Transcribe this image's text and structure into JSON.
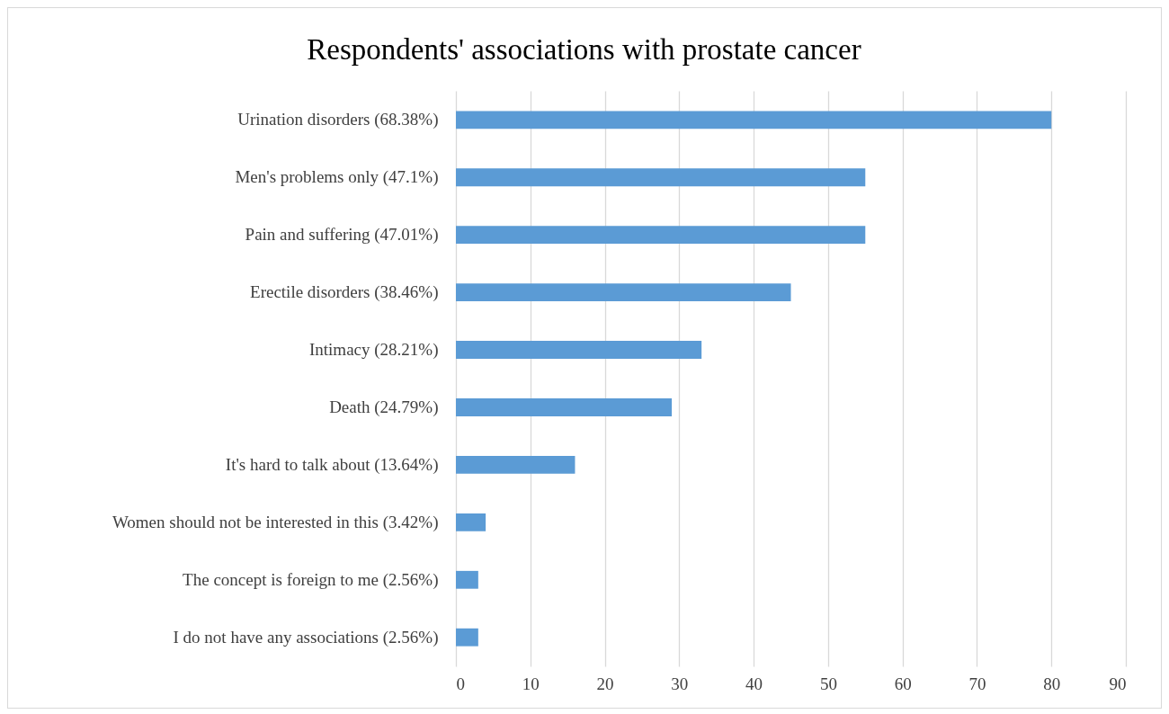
{
  "chart_data": {
    "type": "bar",
    "orientation": "horizontal",
    "title": "Respondents' associations with prostate cancer",
    "categories": [
      "Urination disorders (68.38%)",
      "Men's problems only (47.1%)",
      "Pain and suffering (47.01%)",
      "Erectile disorders (38.46%)",
      "Intimacy (28.21%)",
      "Death (24.79%)",
      "It's hard to talk about  (13.64%)",
      "Women should not be interested in this (3.42%)",
      "The concept is foreign to me (2.56%)",
      "I do not have any associations (2.56%)"
    ],
    "values": [
      80,
      55,
      55,
      45,
      33,
      29,
      16,
      4,
      3,
      3
    ],
    "color": "#5b9bd5",
    "xlim": [
      0,
      90
    ],
    "xticks": [
      0,
      10,
      20,
      30,
      40,
      50,
      60,
      70,
      80,
      90
    ],
    "grid": "x"
  }
}
